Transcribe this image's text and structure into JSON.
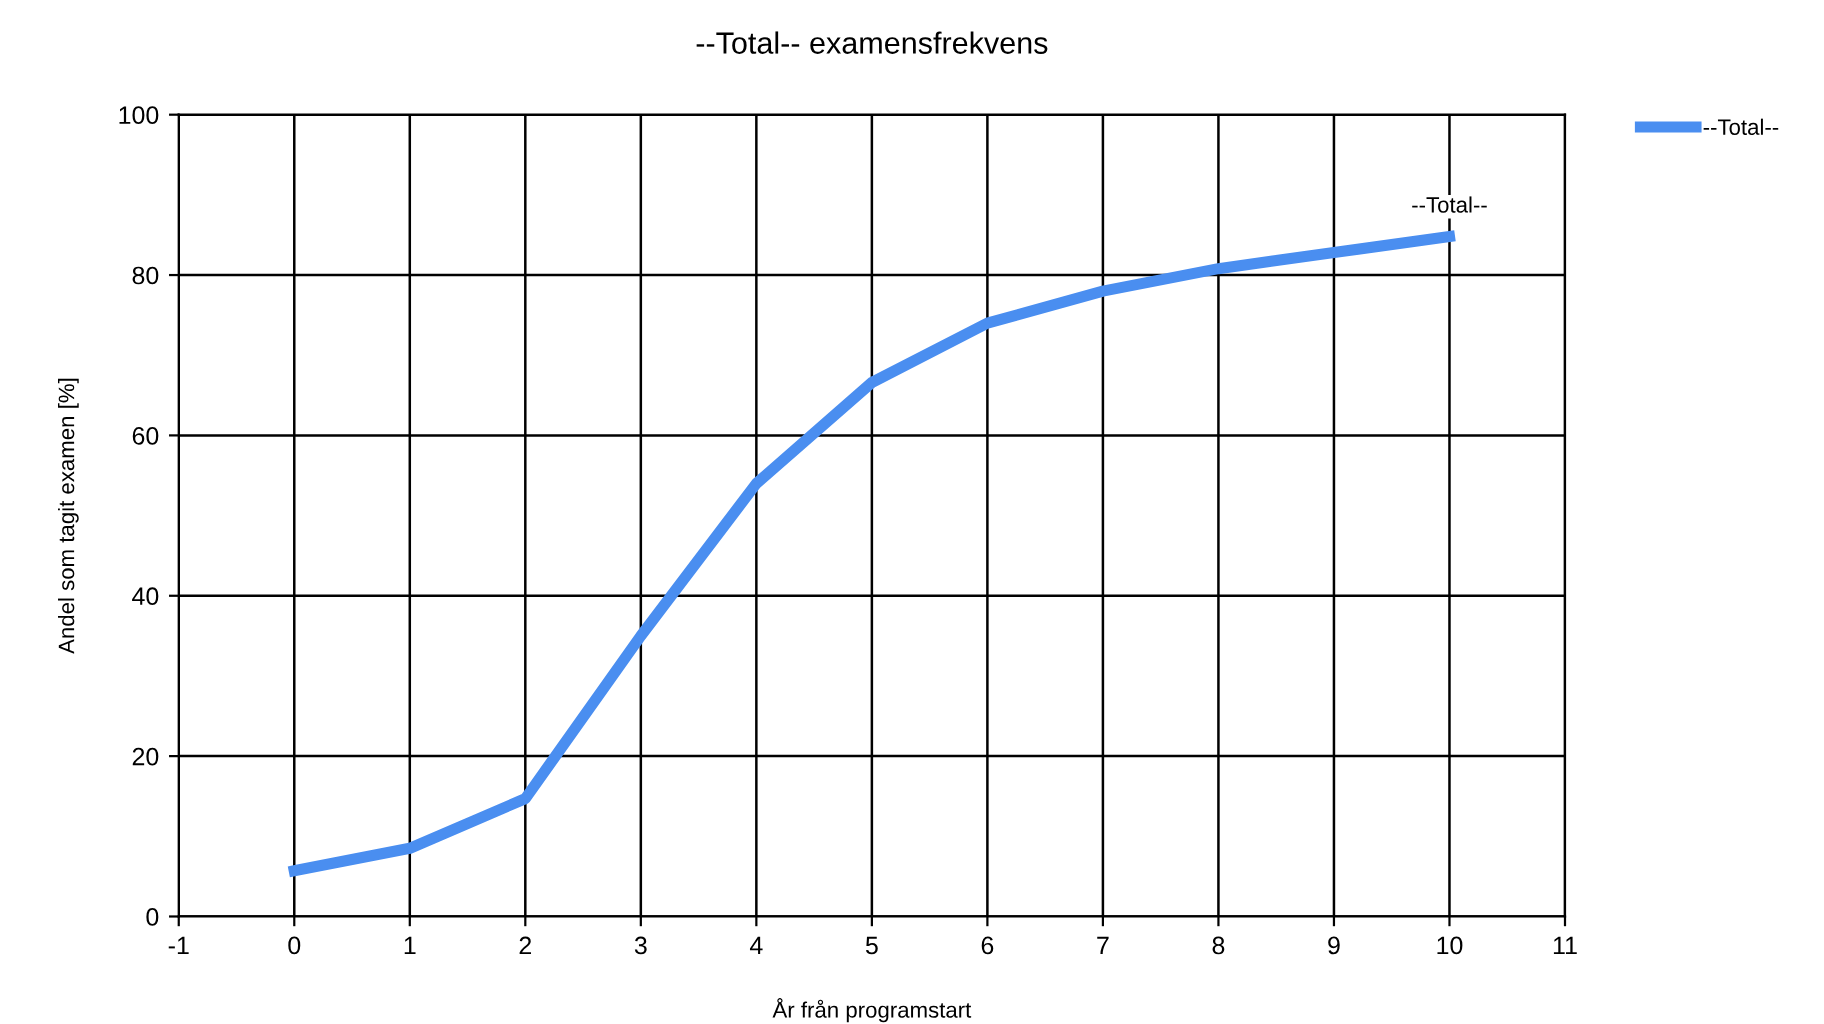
{
  "chart_data": {
    "type": "line",
    "title": "--Total-- examensfrekvens",
    "xlabel": "År från programstart",
    "ylabel": "Andel som tagit examen [%]",
    "x": [
      0,
      1,
      2,
      3,
      4,
      5,
      6,
      7,
      8,
      9,
      10
    ],
    "series": [
      {
        "name": "--Total--",
        "color": "#4a8ef0",
        "values": [
          5.7,
          8.5,
          14.7,
          35,
          54,
          66.6,
          74,
          78,
          80.8,
          82.8,
          84.8
        ]
      }
    ],
    "xlim": [
      -1,
      11
    ],
    "xticks": [
      -1,
      0,
      1,
      2,
      3,
      4,
      5,
      6,
      7,
      8,
      9,
      10,
      11
    ],
    "ylim": [
      0,
      100
    ],
    "yticks": [
      0,
      20,
      40,
      60,
      80,
      100
    ],
    "grid": true,
    "legend": "top right",
    "marker": "none",
    "line_style": "solid",
    "annotations": [
      {
        "text": "--Total--",
        "x": 10,
        "y": 84.8
      }
    ]
  }
}
